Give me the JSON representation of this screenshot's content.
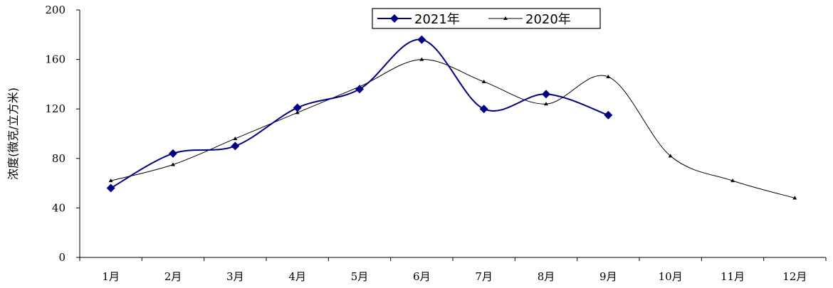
{
  "chart_data": {
    "type": "line",
    "title": "",
    "xlabel": "",
    "ylabel": "浓度(微克/立方米)",
    "categories": [
      "1月",
      "2月",
      "3月",
      "4月",
      "5月",
      "6月",
      "7月",
      "8月",
      "9月",
      "10月",
      "11月",
      "12月"
    ],
    "yticks": [
      "0",
      "40",
      "80",
      "120",
      "160",
      "200"
    ],
    "ylim": [
      0,
      200
    ],
    "grid": false,
    "legend_position": "top-center",
    "series": [
      {
        "name": "2021年",
        "color": "#000080",
        "marker": "diamond",
        "values": [
          56,
          84,
          90,
          121,
          136,
          176,
          120,
          132,
          115,
          null,
          null,
          null
        ]
      },
      {
        "name": "2020年",
        "color": "#000000",
        "marker": "triangle",
        "values": [
          62,
          75,
          96,
          117,
          138,
          160,
          142,
          124,
          146,
          82,
          62,
          48
        ]
      }
    ]
  }
}
